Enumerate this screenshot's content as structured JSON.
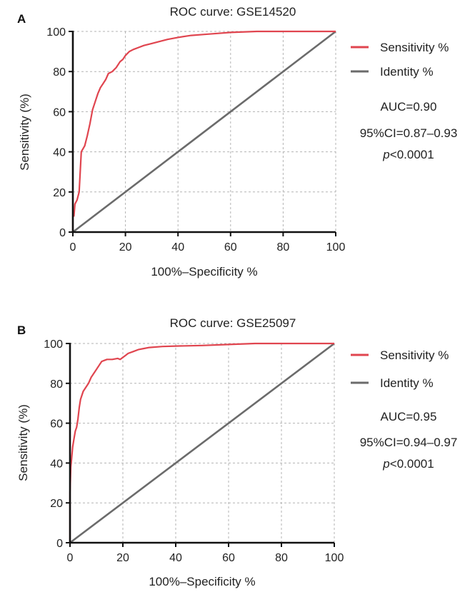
{
  "chart_data": [
    {
      "panel_label": "A",
      "type": "line",
      "title": "ROC curve: GSE14520",
      "xlabel": "100%–Specificity %",
      "ylabel": "Sensitivity (%)",
      "xlim": [
        0,
        100
      ],
      "ylim": [
        0,
        100
      ],
      "xticks": [
        "0",
        "20",
        "40",
        "60",
        "80",
        "100"
      ],
      "yticks": [
        "0",
        "20",
        "40",
        "60",
        "80",
        "100"
      ],
      "grid": true,
      "legend_position": "right",
      "series": [
        {
          "name": "Sensitivity %",
          "color": "#e0454f",
          "x": [
            0,
            0,
            0.4,
            0.8,
            0.8,
            1.6,
            1.6,
            2.4,
            2.4,
            3.2,
            3.2,
            4.5,
            5.5,
            6.5,
            7.5,
            8.5,
            9.5,
            10.5,
            11.5,
            12.5,
            13.5,
            15,
            16.5,
            18,
            19,
            20,
            21.5,
            23,
            25,
            27,
            30,
            33,
            36,
            40,
            45,
            50,
            55,
            60,
            70,
            80,
            90,
            100
          ],
          "y": [
            0,
            8,
            8,
            14,
            14,
            16,
            16,
            20,
            20,
            40,
            40,
            43,
            48,
            54,
            61,
            65,
            69,
            72,
            74,
            76,
            79,
            80,
            82,
            85,
            86,
            88,
            90,
            91,
            92,
            93,
            94,
            95,
            96,
            97,
            98,
            98.5,
            99,
            99.5,
            100,
            100,
            100,
            100
          ]
        },
        {
          "name": "Identity %",
          "color": "#6b6b6b",
          "x": [
            0,
            100
          ],
          "y": [
            0,
            100
          ]
        }
      ],
      "annotations": [
        "AUC=0.90",
        "95%CI=0.87–0.93",
        "p<0.0001"
      ]
    },
    {
      "panel_label": "B",
      "type": "line",
      "title": "ROC curve: GSE25097",
      "xlabel": "100%–Specificity %",
      "ylabel": "Sensitivity (%)",
      "xlim": [
        0,
        100
      ],
      "ylim": [
        0,
        100
      ],
      "xticks": [
        "0",
        "20",
        "40",
        "60",
        "80",
        "100"
      ],
      "yticks": [
        "0",
        "20",
        "40",
        "60",
        "80",
        "100"
      ],
      "grid": true,
      "legend_position": "right",
      "series": [
        {
          "name": "Sensitivity %",
          "color": "#e0454f",
          "x": [
            0,
            0,
            0.3,
            0.6,
            1,
            1.5,
            2,
            2.5,
            3,
            3.5,
            4,
            5,
            6,
            7,
            8,
            9,
            10,
            11,
            12,
            13,
            14,
            16,
            18,
            19,
            20,
            21,
            22,
            24,
            26,
            28,
            30,
            35,
            40,
            50,
            60,
            70,
            80,
            90,
            100
          ],
          "y": [
            0,
            25,
            38,
            42,
            48,
            52,
            56,
            58,
            62,
            68,
            72,
            76,
            78,
            80,
            83,
            85,
            87,
            89,
            91,
            91.5,
            92,
            92,
            92.5,
            92,
            93,
            94,
            95,
            96,
            97,
            97.5,
            98,
            98.5,
            98.7,
            99,
            99.5,
            100,
            100,
            100,
            100
          ]
        },
        {
          "name": "Identity %",
          "color": "#6b6b6b",
          "x": [
            0,
            100
          ],
          "y": [
            0,
            100
          ]
        }
      ],
      "annotations": [
        "AUC=0.95",
        "95%CI=0.94–0.97",
        "p<0.0001"
      ]
    }
  ]
}
